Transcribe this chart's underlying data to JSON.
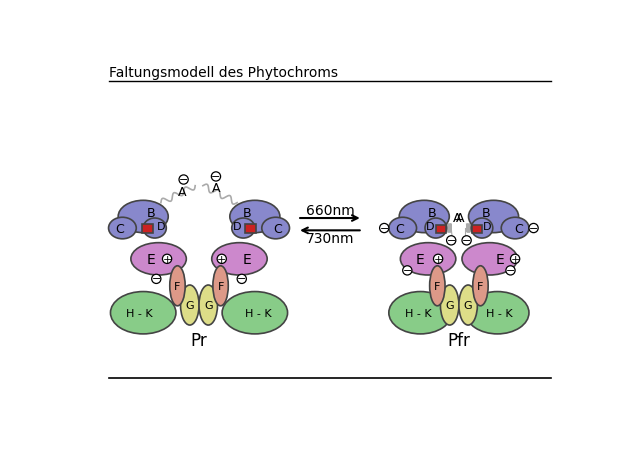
{
  "title": "Faltungsmodell des Phytochroms",
  "bg_color": "#ffffff",
  "colors": {
    "purple_dark": "#8888cc",
    "purple_light": "#cc88cc",
    "green": "#88cc88",
    "yellow": "#dddd88",
    "salmon": "#dd9988",
    "red": "#cc2222",
    "white": "#ffffff",
    "black": "#000000",
    "outline": "#444444",
    "gray": "#aaaaaa"
  },
  "arrow_660": "660nm",
  "arrow_730": "730nm",
  "label_pr": "Pr",
  "label_pfr": "Pfr"
}
